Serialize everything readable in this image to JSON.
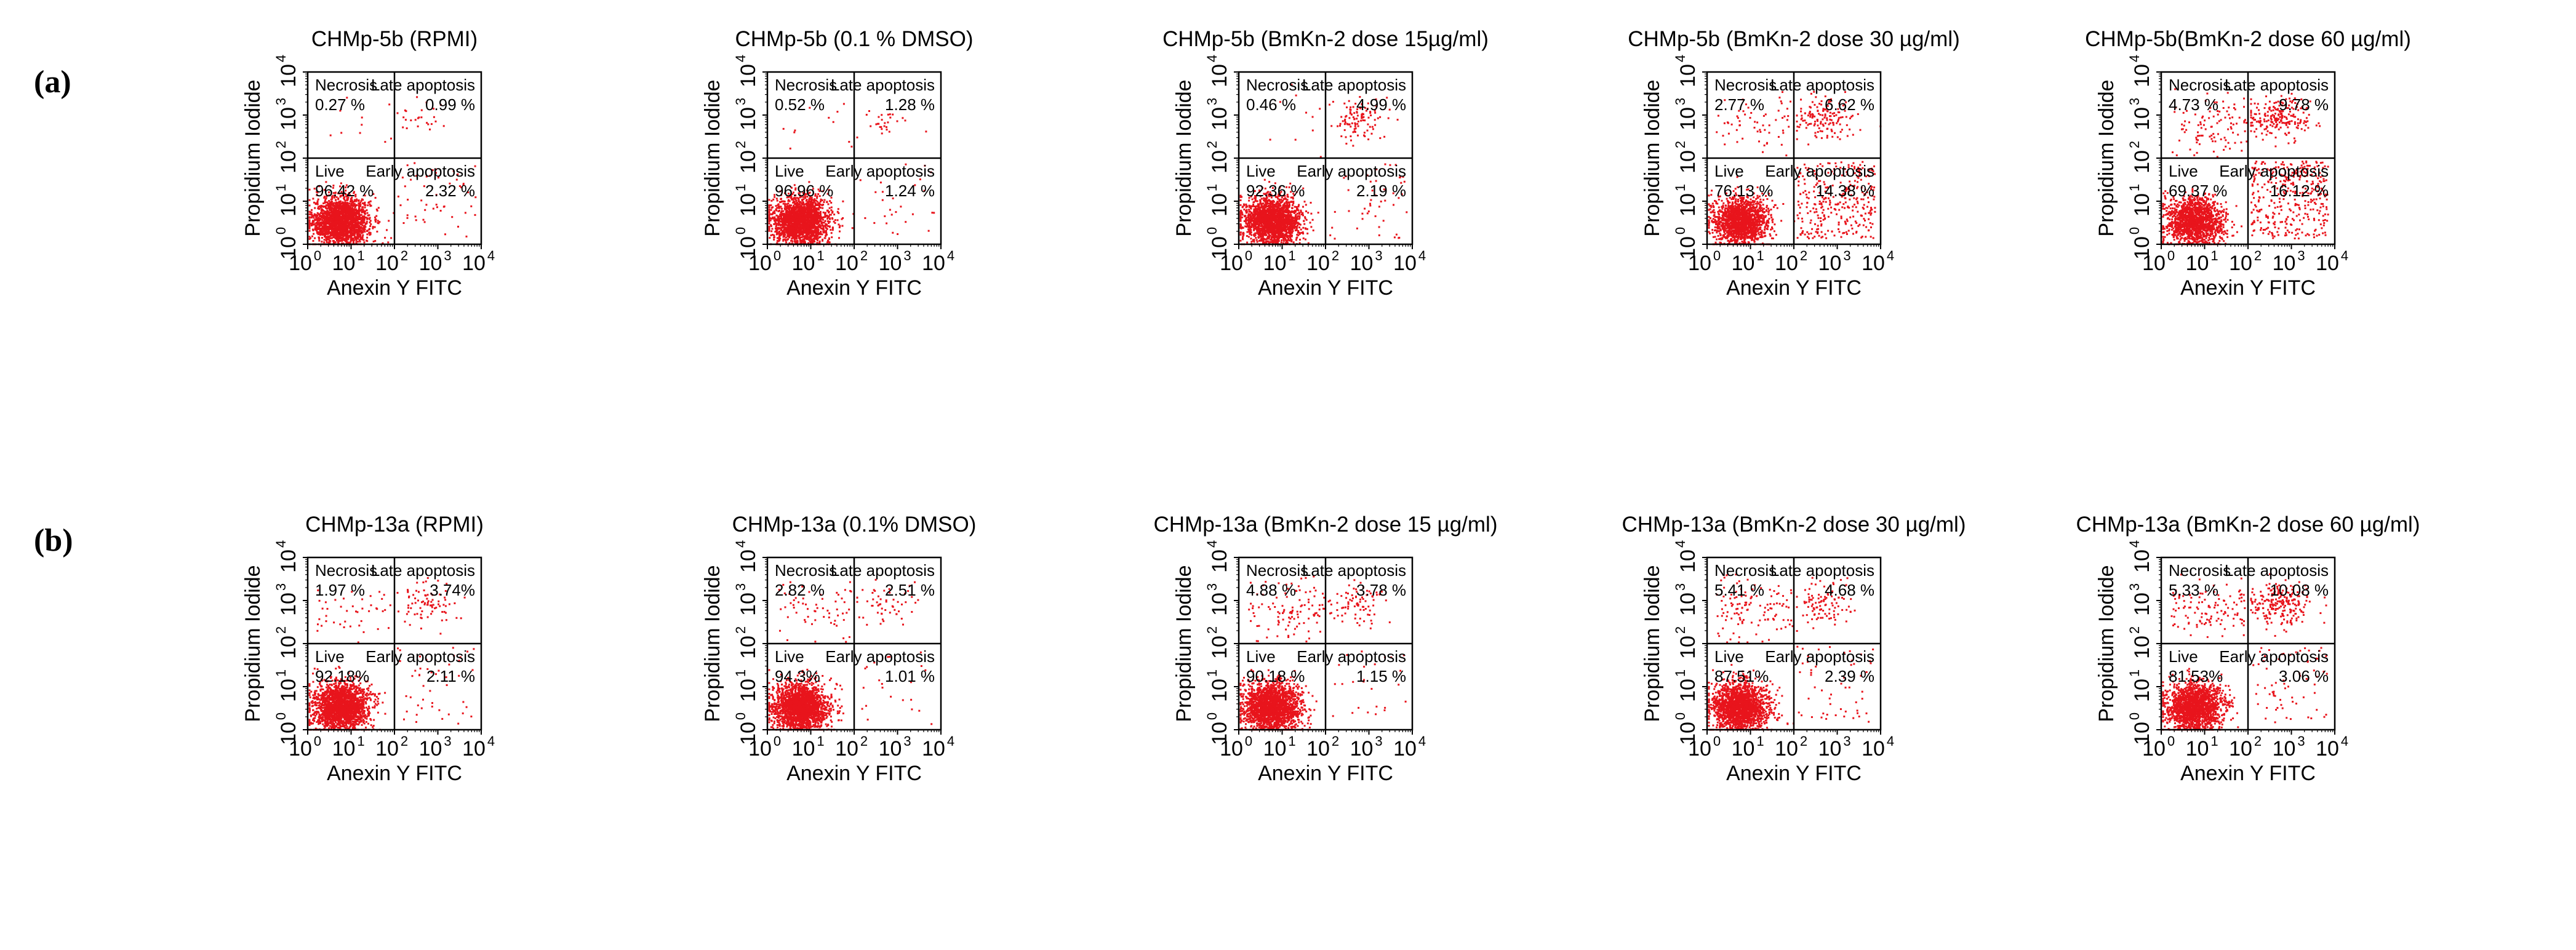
{
  "figure": {
    "row_labels": [
      "(a)",
      "(b)"
    ]
  },
  "chart_data": [
    {
      "type": "scatter",
      "row": 0,
      "title": "CHMp-5b (RPMI)",
      "xlabel": "Anexin Y FITC",
      "ylabel": "Propidium Iodide",
      "xscale": "log",
      "yscale": "log",
      "xlim": [
        1,
        10000
      ],
      "ylim": [
        1,
        10000
      ],
      "gate": {
        "x": 100,
        "y": 100
      },
      "tick_labels": [
        "10",
        "10",
        "10",
        "10",
        "10"
      ],
      "tick_exponents": [
        "0",
        "1",
        "2",
        "3",
        "4"
      ],
      "quadrants": {
        "necrosis": {
          "name": "Necrosis",
          "value": "0.27 %"
        },
        "late": {
          "name": "Late apoptosis",
          "value": "0.99 %"
        },
        "live": {
          "name": "Live",
          "value": "96.42 %"
        },
        "early": {
          "name": "Early apoptosis",
          "value": "2.32 %"
        }
      }
    },
    {
      "type": "scatter",
      "row": 0,
      "title": "CHMp-5b (0.1 % DMSO)",
      "xlabel": "Anexin Y FITC",
      "ylabel": "Propidium Iodide",
      "xscale": "log",
      "yscale": "log",
      "xlim": [
        1,
        10000
      ],
      "ylim": [
        1,
        10000
      ],
      "gate": {
        "x": 100,
        "y": 100
      },
      "tick_labels": [
        "10",
        "10",
        "10",
        "10",
        "10"
      ],
      "tick_exponents": [
        "0",
        "1",
        "2",
        "3",
        "4"
      ],
      "quadrants": {
        "necrosis": {
          "name": "Necrosis",
          "value": "0.52 %"
        },
        "late": {
          "name": "Late apoptosis",
          "value": "1.28 %"
        },
        "live": {
          "name": "Live",
          "value": "96.96 %"
        },
        "early": {
          "name": "Early apoptosis",
          "value": "1.24 %"
        }
      }
    },
    {
      "type": "scatter",
      "row": 0,
      "title": "CHMp-5b (BmKn-2 dose 15µg/ml)",
      "xlabel": "Anexin Y FITC",
      "ylabel": "Propidium Iodide",
      "xscale": "log",
      "yscale": "log",
      "xlim": [
        1,
        10000
      ],
      "ylim": [
        1,
        10000
      ],
      "gate": {
        "x": 100,
        "y": 100
      },
      "tick_labels": [
        "10",
        "10",
        "10",
        "10",
        "10"
      ],
      "tick_exponents": [
        "0",
        "1",
        "2",
        "3",
        "4"
      ],
      "quadrants": {
        "necrosis": {
          "name": "Necrosis",
          "value": "0.46 %"
        },
        "late": {
          "name": "Late apoptosis",
          "value": "4.99 %"
        },
        "live": {
          "name": "Live",
          "value": "92.36 %"
        },
        "early": {
          "name": "Early apoptosis",
          "value": "2.19 %"
        }
      }
    },
    {
      "type": "scatter",
      "row": 0,
      "title": "CHMp-5b (BmKn-2 dose 30 µg/ml)",
      "xlabel": "Anexin Y FITC",
      "ylabel": "Propidium Iodide",
      "xscale": "log",
      "yscale": "log",
      "xlim": [
        1,
        10000
      ],
      "ylim": [
        1,
        10000
      ],
      "gate": {
        "x": 100,
        "y": 100
      },
      "tick_labels": [
        "10",
        "10",
        "10",
        "10",
        "10"
      ],
      "tick_exponents": [
        "0",
        "1",
        "2",
        "3",
        "4"
      ],
      "quadrants": {
        "necrosis": {
          "name": "Necrosis",
          "value": "2.77 %"
        },
        "late": {
          "name": "Late apoptosis",
          "value": "6.62 %"
        },
        "live": {
          "name": "Live",
          "value": "76.13 %"
        },
        "early": {
          "name": "Early apoptosis",
          "value": "14.38 %"
        }
      }
    },
    {
      "type": "scatter",
      "row": 0,
      "title": "CHMp-5b(BmKn-2 dose 60 µg/ml)",
      "xlabel": "Anexin Y FITC",
      "ylabel": "Propidium Iodide",
      "xscale": "log",
      "yscale": "log",
      "xlim": [
        1,
        10000
      ],
      "ylim": [
        1,
        10000
      ],
      "gate": {
        "x": 100,
        "y": 100
      },
      "tick_labels": [
        "10",
        "10",
        "10",
        "10",
        "10"
      ],
      "tick_exponents": [
        "0",
        "1",
        "2",
        "3",
        "4"
      ],
      "quadrants": {
        "necrosis": {
          "name": "Necrosis",
          "value": "4.73 %"
        },
        "late": {
          "name": "Late apoptosis",
          "value": "9.78 %"
        },
        "live": {
          "name": "Live",
          "value": "69.37 %"
        },
        "early": {
          "name": "Early apoptosis",
          "value": "16.12 %"
        }
      }
    },
    {
      "type": "scatter",
      "row": 1,
      "title": "CHMp-13a (RPMI)",
      "xlabel": "Anexin Y FITC",
      "ylabel": "Propidium Iodide",
      "xscale": "log",
      "yscale": "log",
      "xlim": [
        1,
        10000
      ],
      "ylim": [
        1,
        10000
      ],
      "gate": {
        "x": 100,
        "y": 100
      },
      "tick_labels": [
        "10",
        "10",
        "10",
        "10",
        "10"
      ],
      "tick_exponents": [
        "0",
        "1",
        "2",
        "3",
        "4"
      ],
      "quadrants": {
        "necrosis": {
          "name": "Necrosis",
          "value": "1.97 %"
        },
        "late": {
          "name": "Late apoptosis",
          "value": "3.74%"
        },
        "live": {
          "name": "Live",
          "value": "92.18%"
        },
        "early": {
          "name": "Early apoptosis",
          "value": "2.11 %"
        }
      }
    },
    {
      "type": "scatter",
      "row": 1,
      "title": "CHMp-13a (0.1% DMSO)",
      "xlabel": "Anexin Y FITC",
      "ylabel": "Propidium Iodide",
      "xscale": "log",
      "yscale": "log",
      "xlim": [
        1,
        10000
      ],
      "ylim": [
        1,
        10000
      ],
      "gate": {
        "x": 100,
        "y": 100
      },
      "tick_labels": [
        "10",
        "10",
        "10",
        "10",
        "10"
      ],
      "tick_exponents": [
        "0",
        "1",
        "2",
        "3",
        "4"
      ],
      "quadrants": {
        "necrosis": {
          "name": "Necrosis",
          "value": "2.82 %"
        },
        "late": {
          "name": "Late apoptosis",
          "value": "2.51 %"
        },
        "live": {
          "name": "Live",
          "value": "94.3%"
        },
        "early": {
          "name": "Early apoptosis",
          "value": "1.01 %"
        }
      }
    },
    {
      "type": "scatter",
      "row": 1,
      "title": "CHMp-13a (BmKn-2 dose 15 µg/ml)",
      "xlabel": "Anexin Y FITC",
      "ylabel": "Propidium Iodide",
      "xscale": "log",
      "yscale": "log",
      "xlim": [
        1,
        10000
      ],
      "ylim": [
        1,
        10000
      ],
      "gate": {
        "x": 100,
        "y": 100
      },
      "tick_labels": [
        "10",
        "10",
        "10",
        "10",
        "10"
      ],
      "tick_exponents": [
        "0",
        "1",
        "2",
        "3",
        "4"
      ],
      "quadrants": {
        "necrosis": {
          "name": "Necrosis",
          "value": "4.88 %"
        },
        "late": {
          "name": "Late apoptosis",
          "value": "3.78 %"
        },
        "live": {
          "name": "Live",
          "value": "90.18 %"
        },
        "early": {
          "name": "Early apoptosis",
          "value": "1.15 %"
        }
      }
    },
    {
      "type": "scatter",
      "row": 1,
      "title": "CHMp-13a (BmKn-2 dose 30 µg/ml)",
      "xlabel": "Anexin Y FITC",
      "ylabel": "Propidium Iodide",
      "xscale": "log",
      "yscale": "log",
      "xlim": [
        1,
        10000
      ],
      "ylim": [
        1,
        10000
      ],
      "gate": {
        "x": 100,
        "y": 100
      },
      "tick_labels": [
        "10",
        "10",
        "10",
        "10",
        "10"
      ],
      "tick_exponents": [
        "0",
        "1",
        "2",
        "3",
        "4"
      ],
      "quadrants": {
        "necrosis": {
          "name": "Necrosis",
          "value": "5.41 %"
        },
        "late": {
          "name": "Late apoptosis",
          "value": "4.68 %"
        },
        "live": {
          "name": "Live",
          "value": "87.51%"
        },
        "early": {
          "name": "Early apoptosis",
          "value": "2.39 %"
        }
      }
    },
    {
      "type": "scatter",
      "row": 1,
      "title": "CHMp-13a (BmKn-2 dose 60 µg/ml)",
      "xlabel": "Anexin Y FITC",
      "ylabel": "Propidium Iodide",
      "xscale": "log",
      "yscale": "log",
      "xlim": [
        1,
        10000
      ],
      "ylim": [
        1,
        10000
      ],
      "gate": {
        "x": 100,
        "y": 100
      },
      "tick_labels": [
        "10",
        "10",
        "10",
        "10",
        "10"
      ],
      "tick_exponents": [
        "0",
        "1",
        "2",
        "3",
        "4"
      ],
      "quadrants": {
        "necrosis": {
          "name": "Necrosis",
          "value": "5.33 %"
        },
        "late": {
          "name": "Late apoptosis",
          "value": "10.08 %"
        },
        "live": {
          "name": "Live",
          "value": "81.53%"
        },
        "early": {
          "name": "Early apoptosis",
          "value": "3.06 %"
        }
      }
    }
  ],
  "colors": {
    "dots": "#e8141c",
    "axes": "#000000",
    "text": "#000000",
    "background": "#ffffff"
  }
}
